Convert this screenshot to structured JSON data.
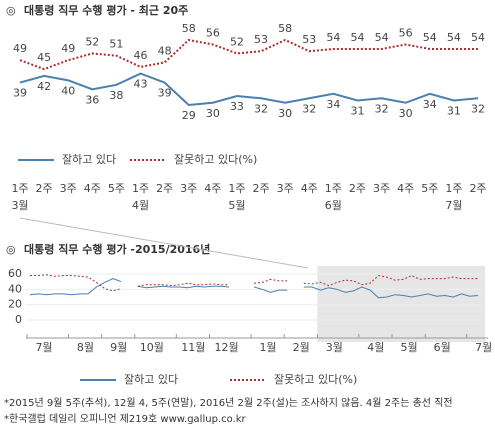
{
  "chart_data": [
    {
      "type": "line",
      "title": "대통령 직무 수행 평가 - 최근 20주",
      "categories": [
        "1주",
        "2주",
        "3주",
        "4주",
        "5주",
        "1주",
        "2주",
        "3주",
        "4주",
        "1주",
        "2주",
        "3주",
        "4주",
        "1주",
        "2주",
        "3주",
        "4주",
        "5주",
        "1주",
        "2주"
      ],
      "months": [
        "3월",
        null,
        null,
        null,
        null,
        "4월",
        null,
        null,
        null,
        "5월",
        null,
        null,
        null,
        "6월",
        null,
        null,
        null,
        null,
        "7월",
        null
      ],
      "series": [
        {
          "name": "잘하고 있다",
          "color": "#4a7fb0",
          "values": [
            39,
            42,
            40,
            36,
            38,
            43,
            39,
            29,
            30,
            33,
            32,
            30,
            32,
            34,
            31,
            32,
            30,
            34,
            31,
            32
          ]
        },
        {
          "name": "잘못하고 있다(%)",
          "color": "#b22a2a",
          "values": [
            49,
            45,
            49,
            52,
            51,
            46,
            48,
            58,
            56,
            52,
            53,
            58,
            53,
            54,
            54,
            54,
            56,
            54,
            54,
            54
          ]
        }
      ]
    },
    {
      "type": "line",
      "title": "대통령 직무 수행 평가 -2015/2016년",
      "categories": [
        "7월",
        null,
        null,
        null,
        null,
        "8월",
        null,
        null,
        null,
        "9월",
        null,
        null,
        null,
        "10월",
        null,
        null,
        null,
        null,
        "11월",
        null,
        null,
        null,
        "12월",
        null,
        null,
        null,
        null,
        "1월",
        null,
        null,
        null,
        "2월",
        null,
        null,
        null,
        "3월",
        null,
        null,
        null,
        null,
        "4월",
        null,
        null,
        null,
        "5월",
        null,
        null,
        null,
        "6월",
        null,
        null,
        null,
        null,
        "7월",
        null
      ],
      "ylim": [
        0,
        60
      ],
      "yticks": [
        0,
        20,
        40,
        60
      ],
      "series": [
        {
          "name": "잘하고 있다",
          "color": "#4a7fb0",
          "values": [
            33,
            34,
            33,
            34,
            34,
            33,
            34,
            34,
            43,
            49,
            54,
            50,
            null,
            44,
            42,
            43,
            44,
            43,
            43,
            42,
            44,
            43,
            44,
            44,
            43,
            null,
            null,
            43,
            40,
            36,
            39,
            39,
            null,
            43,
            43,
            39,
            42,
            40,
            36,
            38,
            43,
            39,
            29,
            30,
            33,
            32,
            30,
            32,
            34,
            31,
            32,
            30,
            34,
            31,
            32
          ]
        },
        {
          "name": "잘못하고 있다(%)",
          "color": "#b22a2a",
          "values": [
            58,
            58,
            59,
            57,
            58,
            58,
            57,
            56,
            49,
            41,
            38,
            41,
            null,
            44,
            46,
            46,
            46,
            45,
            46,
            48,
            46,
            46,
            47,
            46,
            46,
            null,
            null,
            48,
            49,
            53,
            51,
            51,
            null,
            48,
            47,
            49,
            45,
            49,
            52,
            51,
            46,
            48,
            58,
            56,
            52,
            53,
            58,
            53,
            54,
            54,
            54,
            56,
            54,
            54,
            54
          ]
        }
      ]
    }
  ],
  "footnotes": [
    "*2015년 9월 5주(추석), 12월 4, 5주(연말), 2016년 2월 2주(설)는 조사하지 않음. 4월 2주는 총선 직전",
    "*한국갤럽 데일리 오피니언 제219호 www.gallup.co.kr"
  ]
}
